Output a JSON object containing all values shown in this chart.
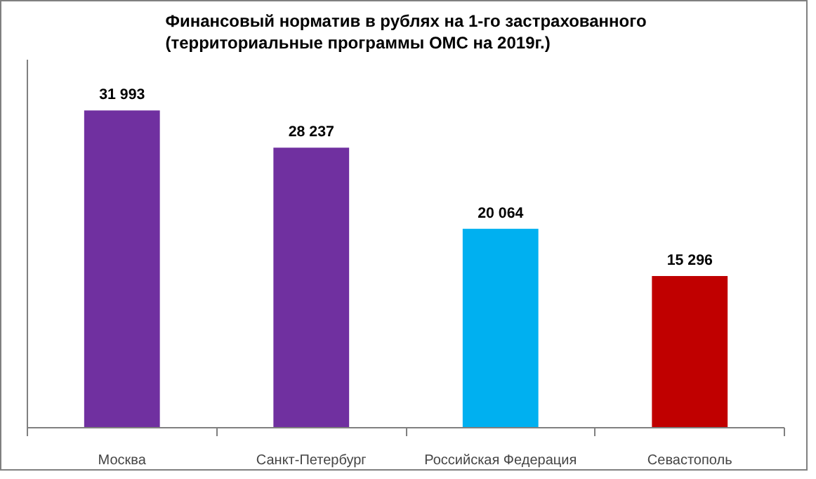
{
  "chart_data": {
    "type": "bar",
    "title": "Финансовый норматив в рублях на 1-го застрахованного\n(территориальные программы ОМС на 2019г.)",
    "categories": [
      "Москва",
      "Санкт-Петербург",
      "Российская Федерация",
      "Севастополь"
    ],
    "values": [
      31993,
      28237,
      20064,
      15296
    ],
    "colors": [
      "#7030a0",
      "#7030a0",
      "#00b0f0",
      "#c00000"
    ],
    "value_labels": [
      "31 993",
      "28 237",
      "20 064",
      "15 296"
    ],
    "grid": false,
    "tick_labels": "x"
  }
}
